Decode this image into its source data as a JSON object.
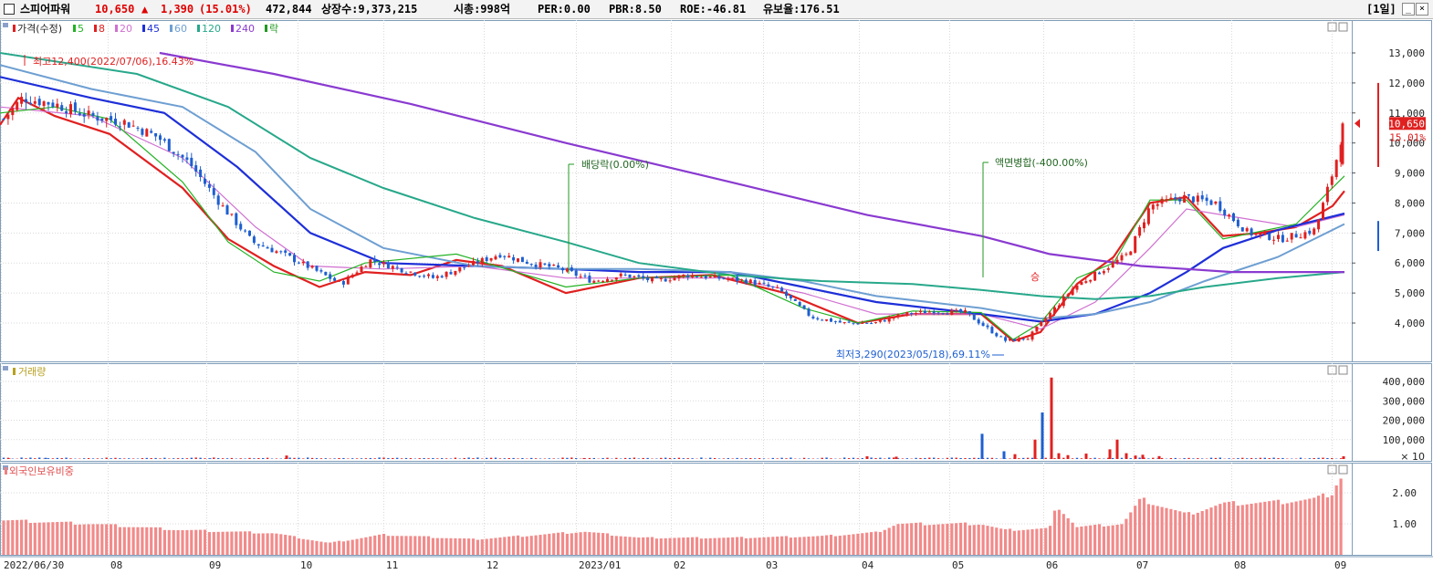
{
  "header": {
    "name": "스피어파워",
    "price": "10,650",
    "change_arrow": "▲",
    "change": "1,390",
    "change_pct": "(15.01%)",
    "volume": "472,844",
    "listed_shares": "상장수:9,373,215",
    "market_cap": "시총:998억",
    "per": "PER:0.00",
    "pbr": "PBR:8.50",
    "roe": "ROE:-46.81",
    "float_ratio": "유보율:176.51",
    "period": "[1일]"
  },
  "legend_price": {
    "title": "가격(수정)",
    "items": [
      {
        "label": "5",
        "color": "#22b222"
      },
      {
        "label": "8",
        "color": "#e02020"
      },
      {
        "label": "20",
        "color": "#d070d0"
      },
      {
        "label": "45",
        "color": "#1e2fd8"
      },
      {
        "label": "60",
        "color": "#6e9fd2"
      },
      {
        "label": "120",
        "color": "#27a88a"
      },
      {
        "label": "240",
        "color": "#8a3ad0"
      },
      {
        "label": "락",
        "color": "#229922"
      }
    ]
  },
  "legend_volume": {
    "title": "거래량"
  },
  "legend_foreign": {
    "title": "외국인보유비중"
  },
  "annotations": {
    "high": "최고12,400(2022/07/06),16.43%",
    "low": "최저3,290(2023/05/18),69.11%",
    "dividend": "배당락(0.00%)",
    "split": "액면병합(-400.00%)",
    "split_mark": "승"
  },
  "price_tag": {
    "price": "10,650",
    "pct": "15.01%"
  },
  "chart_data": [
    {
      "type": "candlestick",
      "title": "가격(수정)",
      "ylim": [
        3000,
        13600
      ],
      "yticks": [
        "13,000",
        "12,000",
        "11,000",
        "10,000",
        "9,000",
        "8,000",
        "7,000",
        "6,000",
        "5,000",
        "4,000"
      ],
      "dates": [
        "2022/06/30",
        "08",
        "09",
        "10",
        "11",
        "12",
        "2023/01",
        "02",
        "03",
        "04",
        "05",
        "06",
        "07",
        "08",
        "09"
      ],
      "close_path": [
        [
          "2022/06/30",
          10800
        ],
        [
          "2022/07/06",
          11500
        ],
        [
          "2022/07/15",
          11300
        ],
        [
          "2022/07/25",
          10900
        ],
        [
          "2022/08/05",
          10700
        ],
        [
          "2022/08/15",
          10200
        ],
        [
          "2022/08/25",
          9300
        ],
        [
          "2022/09/05",
          7900
        ],
        [
          "2022/09/15",
          6700
        ],
        [
          "2022/09/25",
          6300
        ],
        [
          "2022/10/05",
          5800
        ],
        [
          "2022/10/15",
          5300
        ],
        [
          "2022/10/25",
          6100
        ],
        [
          "2022/11/05",
          5800
        ],
        [
          "2022/11/15",
          5500
        ],
        [
          "2022/11/25",
          5900
        ],
        [
          "2022/12/05",
          6300
        ],
        [
          "2022/12/15",
          6000
        ],
        [
          "2022/12/25",
          5800
        ],
        [
          "2023/01/05",
          5400
        ],
        [
          "2023/01/15",
          5600
        ],
        [
          "2023/01/25",
          5400
        ],
        [
          "2023/02/05",
          5600
        ],
        [
          "2023/02/15",
          5500
        ],
        [
          "2023/02/25",
          5400
        ],
        [
          "2023/03/05",
          5100
        ],
        [
          "2023/03/15",
          4200
        ],
        [
          "2023/03/25",
          4000
        ],
        [
          "2023/04/05",
          4000
        ],
        [
          "2023/04/15",
          4300
        ],
        [
          "2023/04/25",
          4400
        ],
        [
          "2023/05/05",
          4350
        ],
        [
          "2023/05/15",
          3600
        ],
        [
          "2023/05/18",
          3400
        ],
        [
          "2023/05/25",
          3500
        ],
        [
          "2023/06/01",
          4200
        ],
        [
          "2023/06/10",
          5200
        ],
        [
          "2023/06/20",
          5800
        ],
        [
          "2023/06/28",
          6300
        ],
        [
          "2023/07/05",
          7900
        ],
        [
          "2023/07/15",
          8200
        ],
        [
          "2023/07/25",
          8000
        ],
        [
          "2023/08/05",
          7000
        ],
        [
          "2023/08/15",
          6800
        ],
        [
          "2023/08/25",
          7100
        ],
        [
          "2023/09/01",
          9300
        ],
        [
          "2023/09/04",
          10650
        ]
      ],
      "series": [
        {
          "name": "8",
          "color": "#e02020",
          "values": [
            [
              0,
              10600
            ],
            [
              20,
              11500
            ],
            [
              60,
              10900
            ],
            [
              120,
              10300
            ],
            [
              200,
              8500
            ],
            [
              250,
              6800
            ],
            [
              300,
              5900
            ],
            [
              350,
              5200
            ],
            [
              400,
              5700
            ],
            [
              450,
              5600
            ],
            [
              500,
              6100
            ],
            [
              550,
              5900
            ],
            [
              620,
              5000
            ],
            [
              700,
              5500
            ],
            [
              780,
              5600
            ],
            [
              860,
              5000
            ],
            [
              940,
              4000
            ],
            [
              1000,
              4300
            ],
            [
              1075,
              4300
            ],
            [
              1110,
              3400
            ],
            [
              1140,
              3700
            ],
            [
              1180,
              5300
            ],
            [
              1220,
              6200
            ],
            [
              1260,
              8000
            ],
            [
              1300,
              8200
            ],
            [
              1340,
              6900
            ],
            [
              1380,
              7000
            ],
            [
              1420,
              7200
            ],
            [
              1460,
              7900
            ],
            [
              1473,
              8400
            ]
          ]
        },
        {
          "name": "20",
          "color": "#d070d0",
          "values": [
            [
              0,
              11200
            ],
            [
              100,
              10900
            ],
            [
              200,
              9500
            ],
            [
              280,
              7200
            ],
            [
              340,
              5900
            ],
            [
              420,
              5800
            ],
            [
              520,
              5900
            ],
            [
              620,
              5500
            ],
            [
              700,
              5500
            ],
            [
              800,
              5500
            ],
            [
              880,
              5000
            ],
            [
              960,
              4300
            ],
            [
              1075,
              4300
            ],
            [
              1140,
              3800
            ],
            [
              1200,
              4700
            ],
            [
              1260,
              6500
            ],
            [
              1300,
              7800
            ],
            [
              1340,
              7600
            ],
            [
              1420,
              7200
            ],
            [
              1473,
              7600
            ]
          ]
        },
        {
          "name": "45",
          "color": "#1e2fd8",
          "values": [
            [
              0,
              12200
            ],
            [
              100,
              11500
            ],
            [
              180,
              11000
            ],
            [
              260,
              9200
            ],
            [
              340,
              7000
            ],
            [
              420,
              6000
            ],
            [
              520,
              5900
            ],
            [
              620,
              5800
            ],
            [
              700,
              5700
            ],
            [
              800,
              5700
            ],
            [
              880,
              5200
            ],
            [
              960,
              4700
            ],
            [
              1075,
              4300
            ],
            [
              1140,
              4050
            ],
            [
              1200,
              4300
            ],
            [
              1260,
              5000
            ],
            [
              1300,
              5700
            ],
            [
              1340,
              6500
            ],
            [
              1400,
              7100
            ],
            [
              1473,
              7650
            ]
          ]
        },
        {
          "name": "60",
          "color": "#6e9fd2",
          "values": [
            [
              0,
              12600
            ],
            [
              100,
              11800
            ],
            [
              200,
              11200
            ],
            [
              280,
              9700
            ],
            [
              340,
              7800
            ],
            [
              420,
              6500
            ],
            [
              520,
              5900
            ],
            [
              620,
              5800
            ],
            [
              700,
              5800
            ],
            [
              800,
              5700
            ],
            [
              880,
              5400
            ],
            [
              960,
              4900
            ],
            [
              1075,
              4500
            ],
            [
              1140,
              4150
            ],
            [
              1200,
              4300
            ],
            [
              1260,
              4700
            ],
            [
              1320,
              5400
            ],
            [
              1400,
              6200
            ],
            [
              1473,
              7300
            ]
          ]
        },
        {
          "name": "120",
          "color": "#27a88a",
          "values": [
            [
              0,
              13000
            ],
            [
              150,
              12300
            ],
            [
              250,
              11200
            ],
            [
              340,
              9500
            ],
            [
              420,
              8500
            ],
            [
              520,
              7500
            ],
            [
              620,
              6700
            ],
            [
              700,
              6000
            ],
            [
              800,
              5600
            ],
            [
              900,
              5400
            ],
            [
              1000,
              5300
            ],
            [
              1075,
              5100
            ],
            [
              1140,
              4900
            ],
            [
              1200,
              4800
            ],
            [
              1260,
              4900
            ],
            [
              1320,
              5200
            ],
            [
              1400,
              5500
            ],
            [
              1473,
              5700
            ]
          ]
        },
        {
          "name": "240",
          "color": "#8a3ad0",
          "values": [
            [
              175,
              13000
            ],
            [
              300,
              12300
            ],
            [
              450,
              11300
            ],
            [
              620,
              10000
            ],
            [
              800,
              8700
            ],
            [
              950,
              7600
            ],
            [
              1075,
              6900
            ],
            [
              1150,
              6300
            ],
            [
              1250,
              5900
            ],
            [
              1350,
              5700
            ],
            [
              1473,
              5700
            ]
          ]
        },
        {
          "name": "5",
          "color": "#22b222",
          "values": [
            [
              0,
              11000
            ],
            [
              60,
              11200
            ],
            [
              120,
              10800
            ],
            [
              200,
              8700
            ],
            [
              250,
              6700
            ],
            [
              300,
              5700
            ],
            [
              350,
              5400
            ],
            [
              400,
              6000
            ],
            [
              500,
              6300
            ],
            [
              620,
              5200
            ],
            [
              700,
              5500
            ],
            [
              800,
              5600
            ],
            [
              880,
              4500
            ],
            [
              940,
              4000
            ],
            [
              1000,
              4400
            ],
            [
              1075,
              4350
            ],
            [
              1110,
              3450
            ],
            [
              1140,
              4000
            ],
            [
              1180,
              5500
            ],
            [
              1220,
              6000
            ],
            [
              1260,
              8100
            ],
            [
              1300,
              8100
            ],
            [
              1340,
              6800
            ],
            [
              1420,
              7300
            ],
            [
              1473,
              8900
            ]
          ]
        }
      ]
    },
    {
      "type": "bar",
      "title": "거래량",
      "ylim": [
        0,
        450000
      ],
      "yticks": [
        "400,000",
        "300,000",
        "200,000",
        "100,000"
      ],
      "unit_label": "× 10",
      "values": [
        [
          10,
          3000
        ],
        [
          50,
          6000
        ],
        [
          230,
          4000
        ],
        [
          314,
          18000
        ],
        [
          640,
          5000
        ],
        [
          950,
          14000
        ],
        [
          982,
          12000
        ],
        [
          1076,
          130000
        ],
        [
          1100,
          40000
        ],
        [
          1112,
          25000
        ],
        [
          1134,
          100000
        ],
        [
          1142,
          240000
        ],
        [
          1152,
          420000
        ],
        [
          1160,
          30000
        ],
        [
          1170,
          20000
        ],
        [
          1190,
          28000
        ],
        [
          1216,
          50000
        ],
        [
          1224,
          100000
        ],
        [
          1234,
          30000
        ],
        [
          1244,
          18000
        ],
        [
          1252,
          22000
        ],
        [
          1270,
          15000
        ],
        [
          1472,
          14000
        ]
      ]
    },
    {
      "type": "bar",
      "title": "외국인보유비중",
      "ylim": [
        0,
        2.7
      ],
      "yticks": [
        "2.00",
        "1.00"
      ],
      "values": [
        [
          0,
          1.12
        ],
        [
          100,
          1.0
        ],
        [
          200,
          0.8
        ],
        [
          300,
          0.7
        ],
        [
          360,
          0.38
        ],
        [
          420,
          0.65
        ],
        [
          520,
          0.5
        ],
        [
          640,
          0.75
        ],
        [
          700,
          0.55
        ],
        [
          800,
          0.55
        ],
        [
          900,
          0.6
        ],
        [
          960,
          0.72
        ],
        [
          983,
          1.0
        ],
        [
          1075,
          1.0
        ],
        [
          1100,
          0.8
        ],
        [
          1150,
          0.85
        ],
        [
          1158,
          1.6
        ],
        [
          1180,
          0.9
        ],
        [
          1230,
          1.0
        ],
        [
          1250,
          1.8
        ],
        [
          1300,
          1.3
        ],
        [
          1340,
          1.65
        ],
        [
          1400,
          1.7
        ],
        [
          1440,
          1.8
        ],
        [
          1460,
          2.0
        ],
        [
          1467,
          2.5
        ],
        [
          1473,
          2.5
        ]
      ]
    }
  ],
  "colors": {
    "up": "#e02020",
    "down": "#1e5fd0",
    "grid": "#d9d9d9",
    "frame": "#7f9db9"
  }
}
